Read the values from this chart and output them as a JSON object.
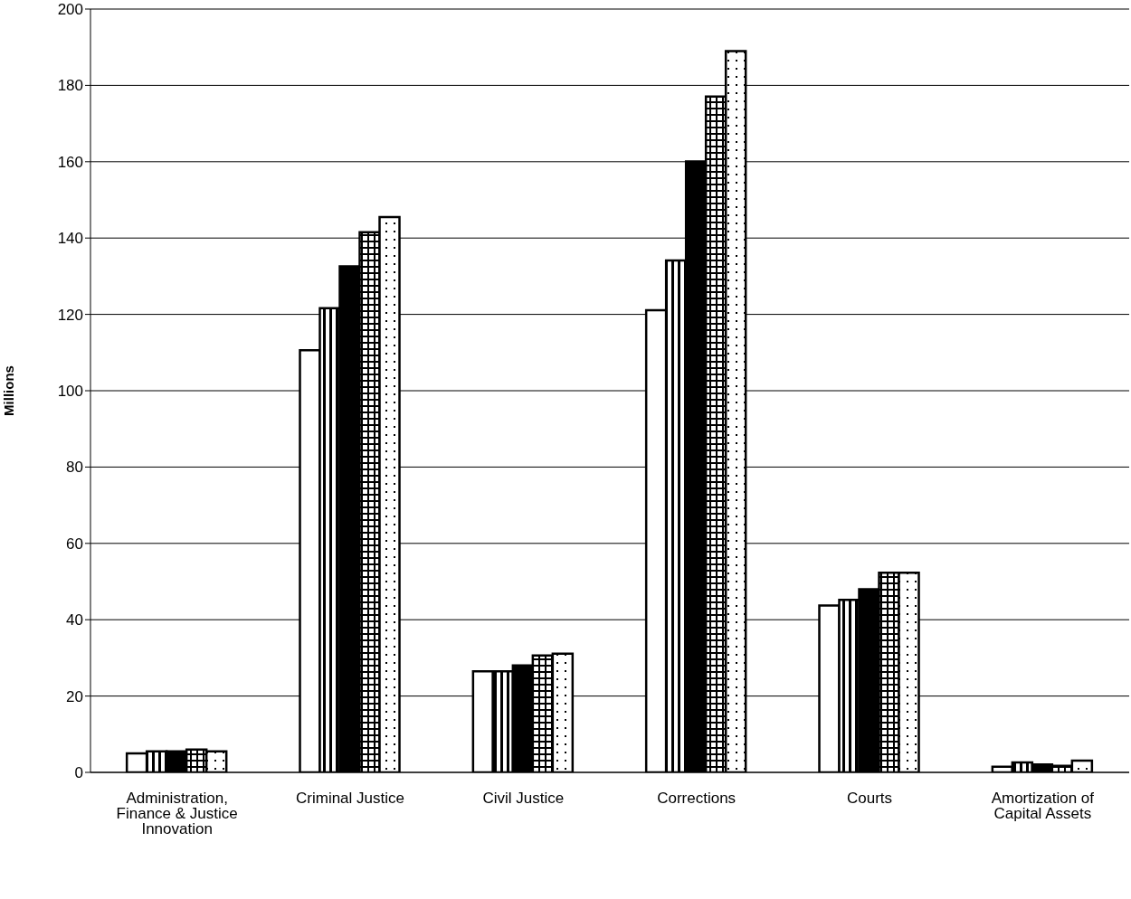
{
  "chart_data": {
    "type": "bar",
    "ylabel": "Millions",
    "categories": [
      "Administration, Finance & Justice Innovation",
      "Criminal Justice",
      "Civil Justice",
      "Corrections",
      "Courts",
      "Amortization of Capital Assets"
    ],
    "series": [
      {
        "color": "#ffffff",
        "values": [
          5.0,
          110.6,
          26.5,
          121.1,
          43.7,
          1.5
        ]
      },
      {
        "color": "#000000",
        "values": [
          5.5,
          121.6,
          26.5,
          134.1,
          45.2,
          2.6
        ]
      },
      {
        "color": "#000000",
        "values": [
          5.5,
          132.6,
          28.0,
          160.1,
          48.0,
          2.1
        ]
      },
      {
        "color": "#000000",
        "values": [
          6.0,
          141.5,
          30.6,
          177.1,
          52.3,
          1.7
        ]
      },
      {
        "color": "#000000",
        "values": [
          5.5,
          145.5,
          31.1,
          189.0,
          52.3,
          3.1
        ]
      }
    ],
    "ylim": [
      0,
      200
    ],
    "yticks": [
      0,
      20,
      40,
      60,
      80,
      100,
      120,
      140,
      160,
      180,
      200
    ],
    "grid": "y",
    "legend": false
  }
}
